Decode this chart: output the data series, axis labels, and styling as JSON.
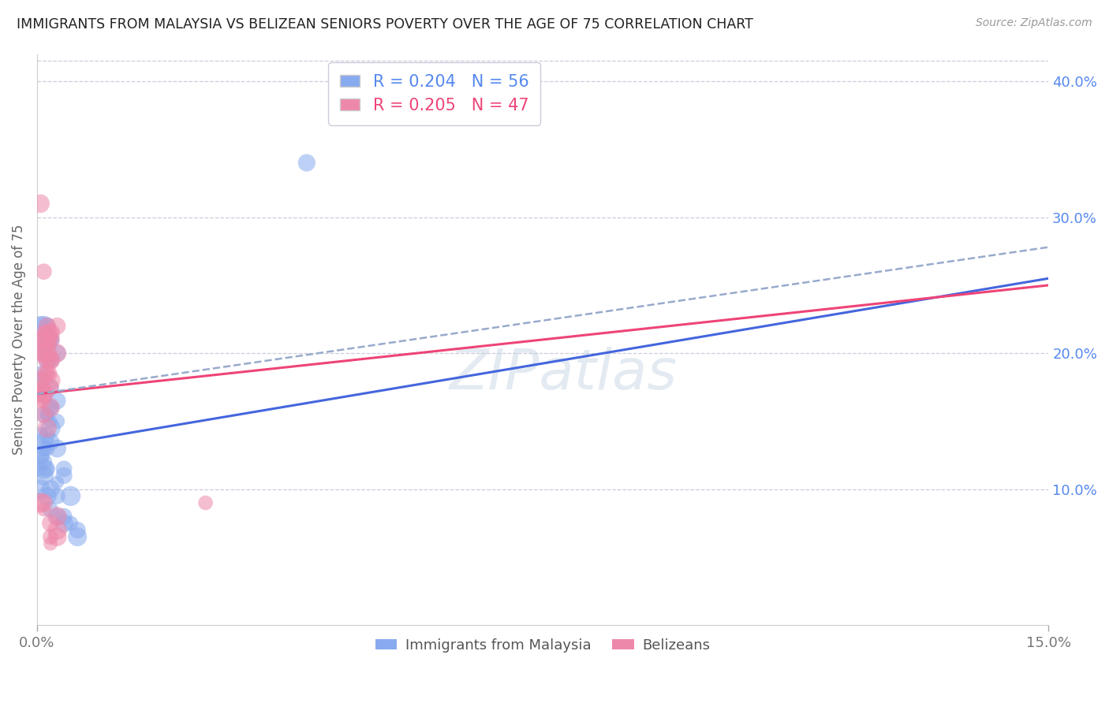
{
  "title": "IMMIGRANTS FROM MALAYSIA VS BELIZEAN SENIORS POVERTY OVER THE AGE OF 75 CORRELATION CHART",
  "source": "Source: ZipAtlas.com",
  "ylabel": "Seniors Poverty Over the Age of 75",
  "xlim": [
    0.0,
    0.15
  ],
  "ylim": [
    0.0,
    0.42
  ],
  "legend1_label": "R = 0.204   N = 56",
  "legend2_label": "R = 0.205   N = 47",
  "legend_color1": "#5588EE",
  "legend_color2": "#EE4477",
  "scatter_color1": "#88AAEE",
  "scatter_color2": "#EE88AA",
  "line_color1": "#4466DD",
  "line_color2": "#EE4477",
  "dashed_color": "#99AACC",
  "watermark": "ZIPatlas",
  "watermark_color": "#BBCCDD",
  "background_color": "#FFFFFF",
  "grid_color": "#CCCCDD",
  "title_color": "#222222",
  "right_axis_color": "#5588EE",
  "malaysia_line_x": [
    0.0,
    0.15
  ],
  "malaysia_line_y": [
    0.13,
    0.255
  ],
  "belize_line_x": [
    0.0,
    0.15
  ],
  "belize_line_y": [
    0.17,
    0.25
  ],
  "dashed_line_x": [
    0.0,
    0.15
  ],
  "dashed_line_y": [
    0.17,
    0.278
  ],
  "malaysia_x": [
    0.0005,
    0.001,
    0.0008,
    0.0015,
    0.001,
    0.0005,
    0.002,
    0.0015,
    0.002,
    0.003,
    0.0005,
    0.001,
    0.0015,
    0.0005,
    0.001,
    0.0005,
    0.0015,
    0.001,
    0.002,
    0.002,
    0.0005,
    0.001,
    0.0015,
    0.002,
    0.0005,
    0.001,
    0.0015,
    0.0005,
    0.001,
    0.002,
    0.003,
    0.0015,
    0.002,
    0.003,
    0.004,
    0.001,
    0.0015,
    0.002,
    0.002,
    0.0005,
    0.001,
    0.0015,
    0.002,
    0.003,
    0.003,
    0.004,
    0.004,
    0.005,
    0.005,
    0.006,
    0.006,
    0.002,
    0.003,
    0.04,
    0.004,
    0.003
  ],
  "malaysia_y": [
    0.17,
    0.21,
    0.185,
    0.205,
    0.22,
    0.175,
    0.195,
    0.155,
    0.16,
    0.165,
    0.125,
    0.135,
    0.14,
    0.115,
    0.13,
    0.1,
    0.155,
    0.155,
    0.145,
    0.15,
    0.125,
    0.115,
    0.13,
    0.21,
    0.22,
    0.2,
    0.195,
    0.18,
    0.17,
    0.16,
    0.15,
    0.22,
    0.21,
    0.2,
    0.115,
    0.11,
    0.095,
    0.085,
    0.135,
    0.14,
    0.12,
    0.115,
    0.1,
    0.095,
    0.08,
    0.075,
    0.08,
    0.095,
    0.075,
    0.065,
    0.07,
    0.175,
    0.13,
    0.34,
    0.11,
    0.105
  ],
  "belize_x": [
    0.0005,
    0.001,
    0.0015,
    0.0005,
    0.001,
    0.0015,
    0.002,
    0.001,
    0.0015,
    0.0005,
    0.001,
    0.0015,
    0.002,
    0.0005,
    0.001,
    0.0015,
    0.0005,
    0.001,
    0.002,
    0.003,
    0.001,
    0.0015,
    0.002,
    0.0005,
    0.001,
    0.0015,
    0.002,
    0.002,
    0.0015,
    0.002,
    0.001,
    0.0015,
    0.002,
    0.003,
    0.002,
    0.0015,
    0.001,
    0.0005,
    0.002,
    0.002,
    0.003,
    0.003,
    0.025,
    0.001,
    0.002,
    0.001,
    0.003
  ],
  "belize_y": [
    0.17,
    0.21,
    0.22,
    0.31,
    0.2,
    0.195,
    0.21,
    0.175,
    0.215,
    0.2,
    0.21,
    0.2,
    0.195,
    0.18,
    0.17,
    0.185,
    0.165,
    0.17,
    0.21,
    0.22,
    0.215,
    0.205,
    0.215,
    0.175,
    0.165,
    0.185,
    0.175,
    0.16,
    0.21,
    0.195,
    0.155,
    0.145,
    0.18,
    0.2,
    0.215,
    0.185,
    0.085,
    0.09,
    0.065,
    0.075,
    0.08,
    0.065,
    0.09,
    0.09,
    0.06,
    0.26,
    0.07
  ]
}
